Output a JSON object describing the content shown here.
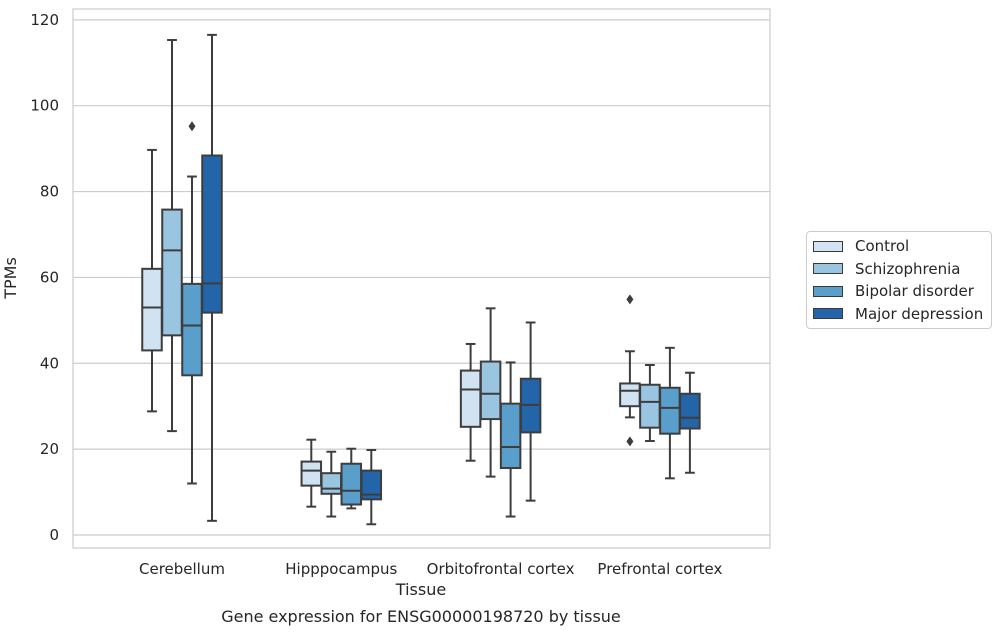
{
  "chart_data": {
    "type": "boxplot",
    "title": "Gene expression for ENSG00000198720 by tissue",
    "xlabel": "Tissue",
    "ylabel": "TPMs",
    "ylim": [
      -2.5,
      122
    ],
    "yticks": [
      0,
      20,
      40,
      60,
      80,
      100,
      120
    ],
    "grid": "horizontal",
    "legend_position": "right",
    "categories": [
      "Cerebellum",
      "Hipppocampus",
      "Orbitofrontal cortex",
      "Prefrontal cortex"
    ],
    "series": [
      {
        "name": "Control",
        "color": "#d1e2f2",
        "boxes": [
          {
            "whislo": 28.8,
            "q1": 43.0,
            "med": 53.0,
            "q3": 62.0,
            "whishi": 89.7,
            "fliers": []
          },
          {
            "whislo": 6.6,
            "q1": 11.5,
            "med": 15.0,
            "q3": 17.1,
            "whishi": 22.2,
            "fliers": []
          },
          {
            "whislo": 17.3,
            "q1": 25.2,
            "med": 33.9,
            "q3": 38.3,
            "whishi": 44.5,
            "fliers": []
          },
          {
            "whislo": 27.4,
            "q1": 30.0,
            "med": 33.6,
            "q3": 35.3,
            "whishi": 42.8,
            "fliers": [
              21.8,
              54.9
            ]
          }
        ]
      },
      {
        "name": "Schizophrenia",
        "color": "#9ac5e0",
        "boxes": [
          {
            "whislo": 24.2,
            "q1": 46.5,
            "med": 66.3,
            "q3": 75.8,
            "whishi": 115.3,
            "fliers": []
          },
          {
            "whislo": 4.3,
            "q1": 9.6,
            "med": 10.8,
            "q3": 14.4,
            "whishi": 19.4,
            "fliers": []
          },
          {
            "whislo": 13.6,
            "q1": 27.0,
            "med": 32.9,
            "q3": 40.4,
            "whishi": 52.8,
            "fliers": []
          },
          {
            "whislo": 21.9,
            "q1": 25.0,
            "med": 31.0,
            "q3": 35.0,
            "whishi": 39.6,
            "fliers": []
          }
        ]
      },
      {
        "name": "Bipolar disorder",
        "color": "#5a9ecb",
        "boxes": [
          {
            "whislo": 12.0,
            "q1": 37.2,
            "med": 48.8,
            "q3": 58.5,
            "whishi": 83.5,
            "fliers": [
              95.2
            ]
          },
          {
            "whislo": 6.2,
            "q1": 7.1,
            "med": 10.3,
            "q3": 16.6,
            "whishi": 20.1,
            "fliers": []
          },
          {
            "whislo": 4.3,
            "q1": 15.6,
            "med": 20.5,
            "q3": 30.6,
            "whishi": 40.2,
            "fliers": []
          },
          {
            "whislo": 13.2,
            "q1": 23.6,
            "med": 29.6,
            "q3": 34.3,
            "whishi": 43.6,
            "fliers": []
          }
        ]
      },
      {
        "name": "Major depression",
        "color": "#2464a8",
        "boxes": [
          {
            "whislo": 3.3,
            "q1": 51.8,
            "med": 58.6,
            "q3": 88.4,
            "whishi": 116.5,
            "fliers": []
          },
          {
            "whislo": 2.5,
            "q1": 8.3,
            "med": 9.4,
            "q3": 15.0,
            "whishi": 19.8,
            "fliers": []
          },
          {
            "whislo": 8.0,
            "q1": 23.9,
            "med": 30.3,
            "q3": 36.4,
            "whishi": 49.5,
            "fliers": []
          },
          {
            "whislo": 14.5,
            "q1": 24.8,
            "med": 27.3,
            "q3": 32.9,
            "whishi": 37.8,
            "fliers": []
          }
        ]
      }
    ]
  }
}
